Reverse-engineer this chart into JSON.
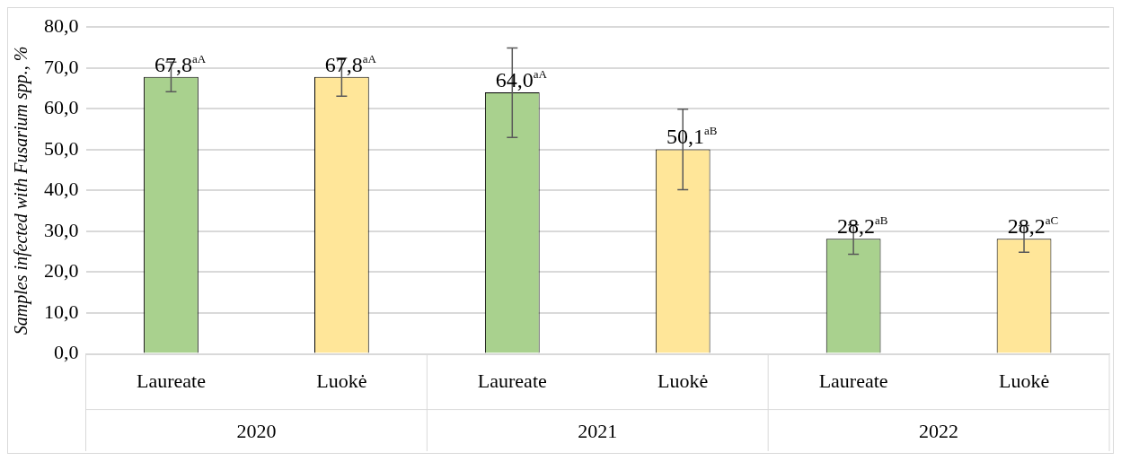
{
  "chart_data": {
    "type": "bar",
    "ylabel": "Samples infected with Fusarium spp., %",
    "categories": [
      "Laureate",
      "Luokė",
      "Laureate",
      "Luokė",
      "Laureate",
      "Luokė"
    ],
    "values": [
      67.8,
      67.8,
      64.0,
      50.1,
      28.2,
      28.2
    ],
    "colors": [
      "#a9d18e",
      "#ffe699",
      "#a9d18e",
      "#ffe699",
      "#a9d18e",
      "#ffe699"
    ],
    "errors": [
      [
        64.2,
        71.4
      ],
      [
        63.1,
        72.4
      ],
      [
        53.0,
        74.9
      ],
      [
        40.2,
        59.9
      ],
      [
        24.4,
        31.6
      ],
      [
        24.9,
        31.4
      ]
    ],
    "value_labels": [
      "67,8$^{aA}$",
      "67,8$^{aA}$",
      "64,0$^{aA}$",
      "50,1$^{aB}$",
      "28,2$^{aB}$",
      "28,2$^{aC}$"
    ],
    "annotations": [
      "2020",
      "2021",
      "2022"
    ],
    "ylim": [
      0,
      80
    ],
    "yticks": [
      {
        "value": 0,
        "label": "0,0"
      },
      {
        "value": 10,
        "label": "10,0"
      },
      {
        "value": 20,
        "label": "20,0"
      },
      {
        "value": 30,
        "label": "30,0"
      },
      {
        "value": 40,
        "label": "40,0"
      },
      {
        "value": 50,
        "label": "50,0"
      },
      {
        "value": 60,
        "label": "60,0"
      },
      {
        "value": 70,
        "label": "70,0"
      },
      {
        "value": 80,
        "label": "80,0"
      }
    ],
    "grid": "y"
  }
}
